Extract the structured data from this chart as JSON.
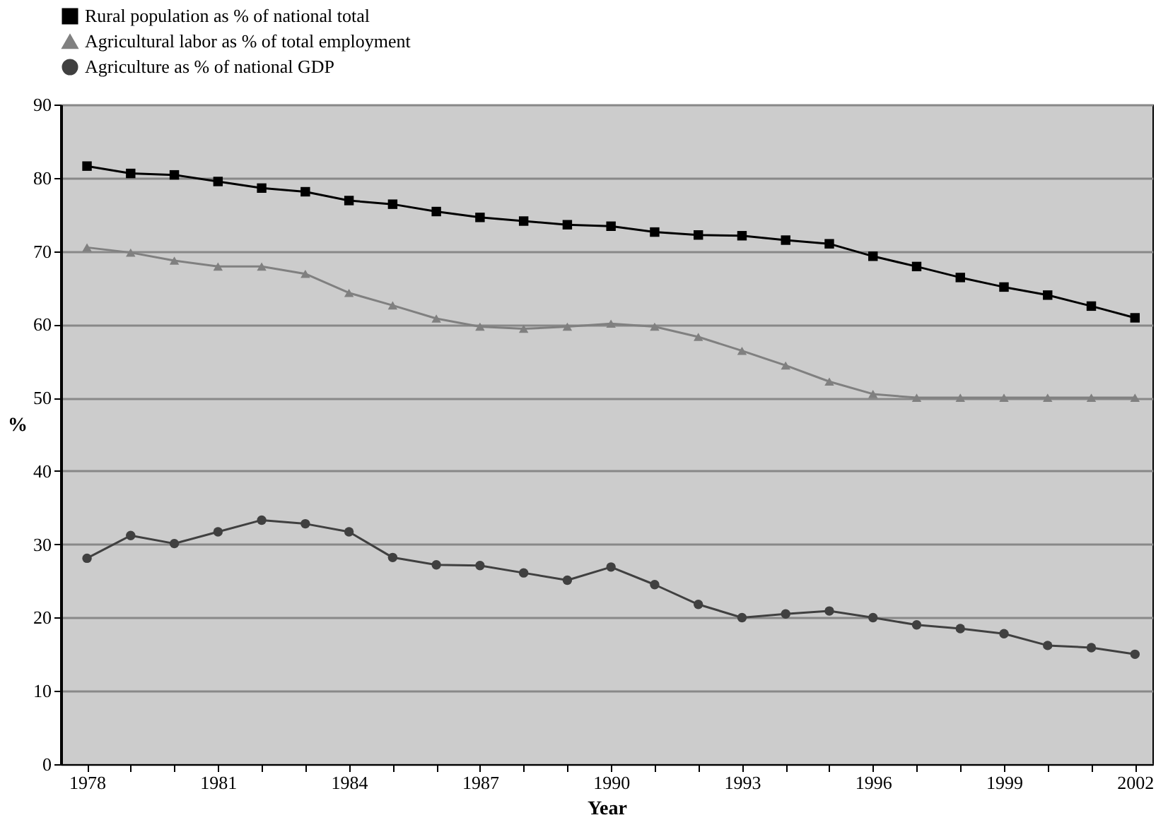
{
  "chart_data": {
    "type": "line",
    "xlabel": "Year",
    "ylabel": "%",
    "x": [
      1978,
      1979,
      1980,
      1981,
      1982,
      1983,
      1984,
      1985,
      1986,
      1987,
      1988,
      1989,
      1990,
      1991,
      1992,
      1993,
      1994,
      1995,
      1996,
      1997,
      1998,
      1999,
      2000,
      2001,
      2002
    ],
    "series": [
      {
        "name": "Rural population as % of national total",
        "color": "#000000",
        "marker": "square",
        "values": [
          81.6,
          80.6,
          80.4,
          79.5,
          78.6,
          78.1,
          76.9,
          76.4,
          75.4,
          74.6,
          74.1,
          73.6,
          73.4,
          72.6,
          72.2,
          72.1,
          71.5,
          71.0,
          69.3,
          67.9,
          66.4,
          65.1,
          64.0,
          62.5,
          60.9
        ]
      },
      {
        "name": "Agricultural labor as % of total employment",
        "color": "#808080",
        "marker": "triangle",
        "values": [
          70.5,
          69.8,
          68.7,
          67.9,
          67.9,
          66.9,
          64.3,
          62.6,
          60.8,
          59.7,
          59.4,
          59.7,
          60.1,
          59.7,
          58.3,
          56.4,
          54.4,
          52.2,
          50.5,
          50.0,
          50.0,
          50.0,
          50.0,
          50.0,
          50.0
        ]
      },
      {
        "name": "Agriculture as % of national GDP",
        "color": "#404040",
        "marker": "circle",
        "values": [
          28.1,
          31.2,
          30.1,
          31.7,
          33.3,
          32.8,
          31.7,
          28.2,
          27.2,
          27.1,
          26.1,
          25.1,
          26.9,
          24.5,
          21.8,
          20.0,
          20.5,
          20.9,
          20.0,
          19.0,
          18.5,
          17.8,
          16.2,
          15.9,
          15.0
        ]
      }
    ],
    "xlim": [
      1977.4,
      2002.4
    ],
    "xticks": [
      1978,
      {
        "value": 1979,
        "label": null
      },
      {
        "value": 1980,
        "label": null
      },
      1981,
      {
        "value": 1982,
        "label": null
      },
      {
        "value": 1983,
        "label": null
      },
      1984,
      {
        "value": 1985,
        "label": null
      },
      {
        "value": 1986,
        "label": null
      },
      1987,
      {
        "value": 1988,
        "label": null
      },
      {
        "value": 1989,
        "label": null
      },
      1990,
      {
        "value": 1991,
        "label": null
      },
      {
        "value": 1992,
        "label": null
      },
      1993,
      {
        "value": 1994,
        "label": null
      },
      {
        "value": 1995,
        "label": null
      },
      1996,
      {
        "value": 1997,
        "label": null
      },
      {
        "value": 1998,
        "label": null
      },
      1999,
      {
        "value": 2000,
        "label": null
      },
      {
        "value": 2001,
        "label": null
      },
      2002
    ],
    "ylim": [
      0,
      90
    ],
    "yticks": [
      0,
      10,
      20,
      30,
      40,
      50,
      60,
      70,
      80,
      90
    ],
    "grid": "y",
    "legend": "top",
    "line_style": "solid"
  }
}
